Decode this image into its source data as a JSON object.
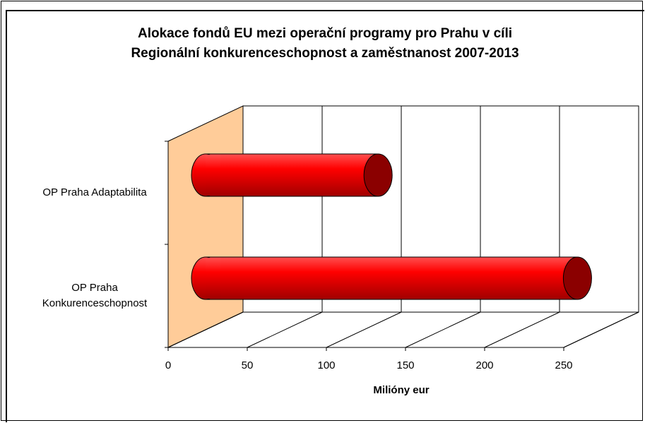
{
  "chart_data": {
    "type": "bar3d",
    "orientation": "horizontal",
    "title": "Alokace fondů EU mezi operační programy pro Prahu v cíli\nRegionální konkurenceschopnost a zaměstnanost 2007-2013",
    "categories": [
      "OP Praha Adaptabilita",
      "OP Praha Konkurenceschopnost"
    ],
    "values": [
      109,
      235
    ],
    "color": "#ff0000",
    "wall_color": "#ffcc99",
    "xlabel": "Milióny eur",
    "xlim": [
      0,
      250
    ],
    "xticks": [
      0,
      50,
      100,
      150,
      200,
      250
    ],
    "grid": true
  }
}
